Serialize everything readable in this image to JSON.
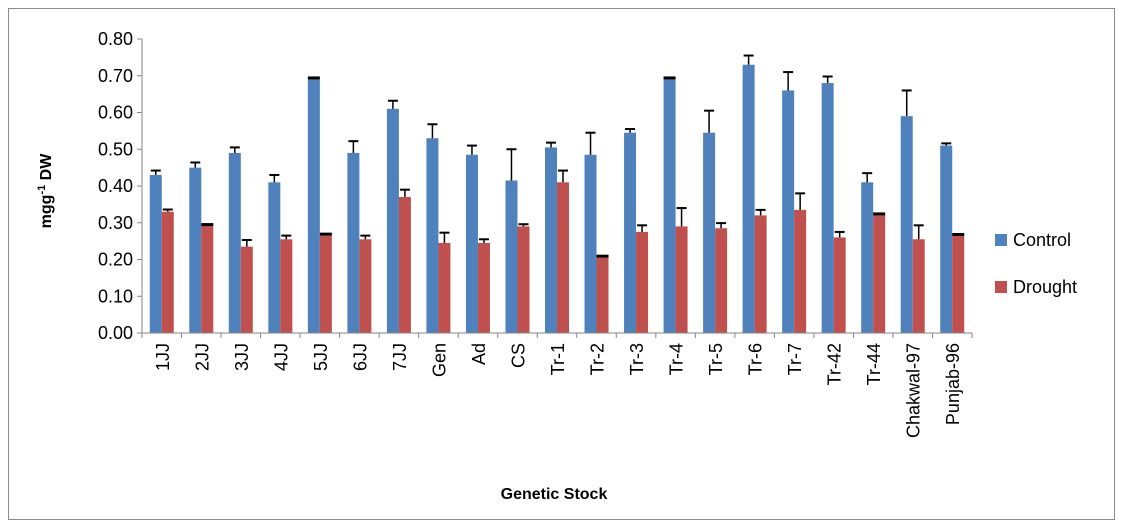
{
  "chart_data": {
    "type": "bar",
    "title": "",
    "xlabel": "Genetic Stock",
    "ylabel_main": "mgg",
    "ylabel_sup": "-1",
    "ylabel_tail": " DW",
    "ylim": [
      0,
      0.8
    ],
    "yticks": [
      "0.00",
      "0.10",
      "0.20",
      "0.30",
      "0.40",
      "0.50",
      "0.60",
      "0.70",
      "0.80"
    ],
    "ytick_values": [
      0,
      0.1,
      0.2,
      0.3,
      0.4,
      0.5,
      0.6,
      0.7,
      0.8
    ],
    "grid": false,
    "legend_position": "right",
    "categories": [
      "1JJ",
      "2JJ",
      "3JJ",
      "4JJ",
      "5JJ",
      "6JJ",
      "7JJ",
      "Gen",
      "Ad",
      "CS",
      "Tr-1",
      "Tr-2",
      "Tr-3",
      "Tr-4",
      "Tr-5",
      "Tr-6",
      "Tr-7",
      "Tr-42",
      "Tr-44",
      "Chakwal-97",
      "Punjab-96"
    ],
    "series": [
      {
        "name": "Control",
        "color": "#4f81bd",
        "values": [
          0.43,
          0.45,
          0.49,
          0.41,
          0.69,
          0.49,
          0.61,
          0.53,
          0.485,
          0.415,
          0.505,
          0.485,
          0.545,
          0.69,
          0.545,
          0.73,
          0.66,
          0.68,
          0.41,
          0.59,
          0.51
        ],
        "errors": [
          0.012,
          0.014,
          0.015,
          0.02,
          0.004,
          0.032,
          0.022,
          0.038,
          0.025,
          0.085,
          0.013,
          0.06,
          0.01,
          0.004,
          0.06,
          0.025,
          0.05,
          0.018,
          0.025,
          0.07,
          0.006
        ]
      },
      {
        "name": "Drought",
        "color": "#c0504d",
        "values": [
          0.33,
          0.295,
          0.235,
          0.255,
          0.265,
          0.255,
          0.37,
          0.245,
          0.245,
          0.29,
          0.41,
          0.205,
          0.275,
          0.29,
          0.285,
          0.32,
          0.335,
          0.26,
          0.32,
          0.255,
          0.265
        ],
        "errors": [
          0.006,
          0.0,
          0.018,
          0.01,
          0.004,
          0.01,
          0.02,
          0.028,
          0.01,
          0.006,
          0.032,
          0.004,
          0.018,
          0.05,
          0.014,
          0.015,
          0.045,
          0.015,
          0.004,
          0.038,
          0.003
        ]
      }
    ]
  }
}
